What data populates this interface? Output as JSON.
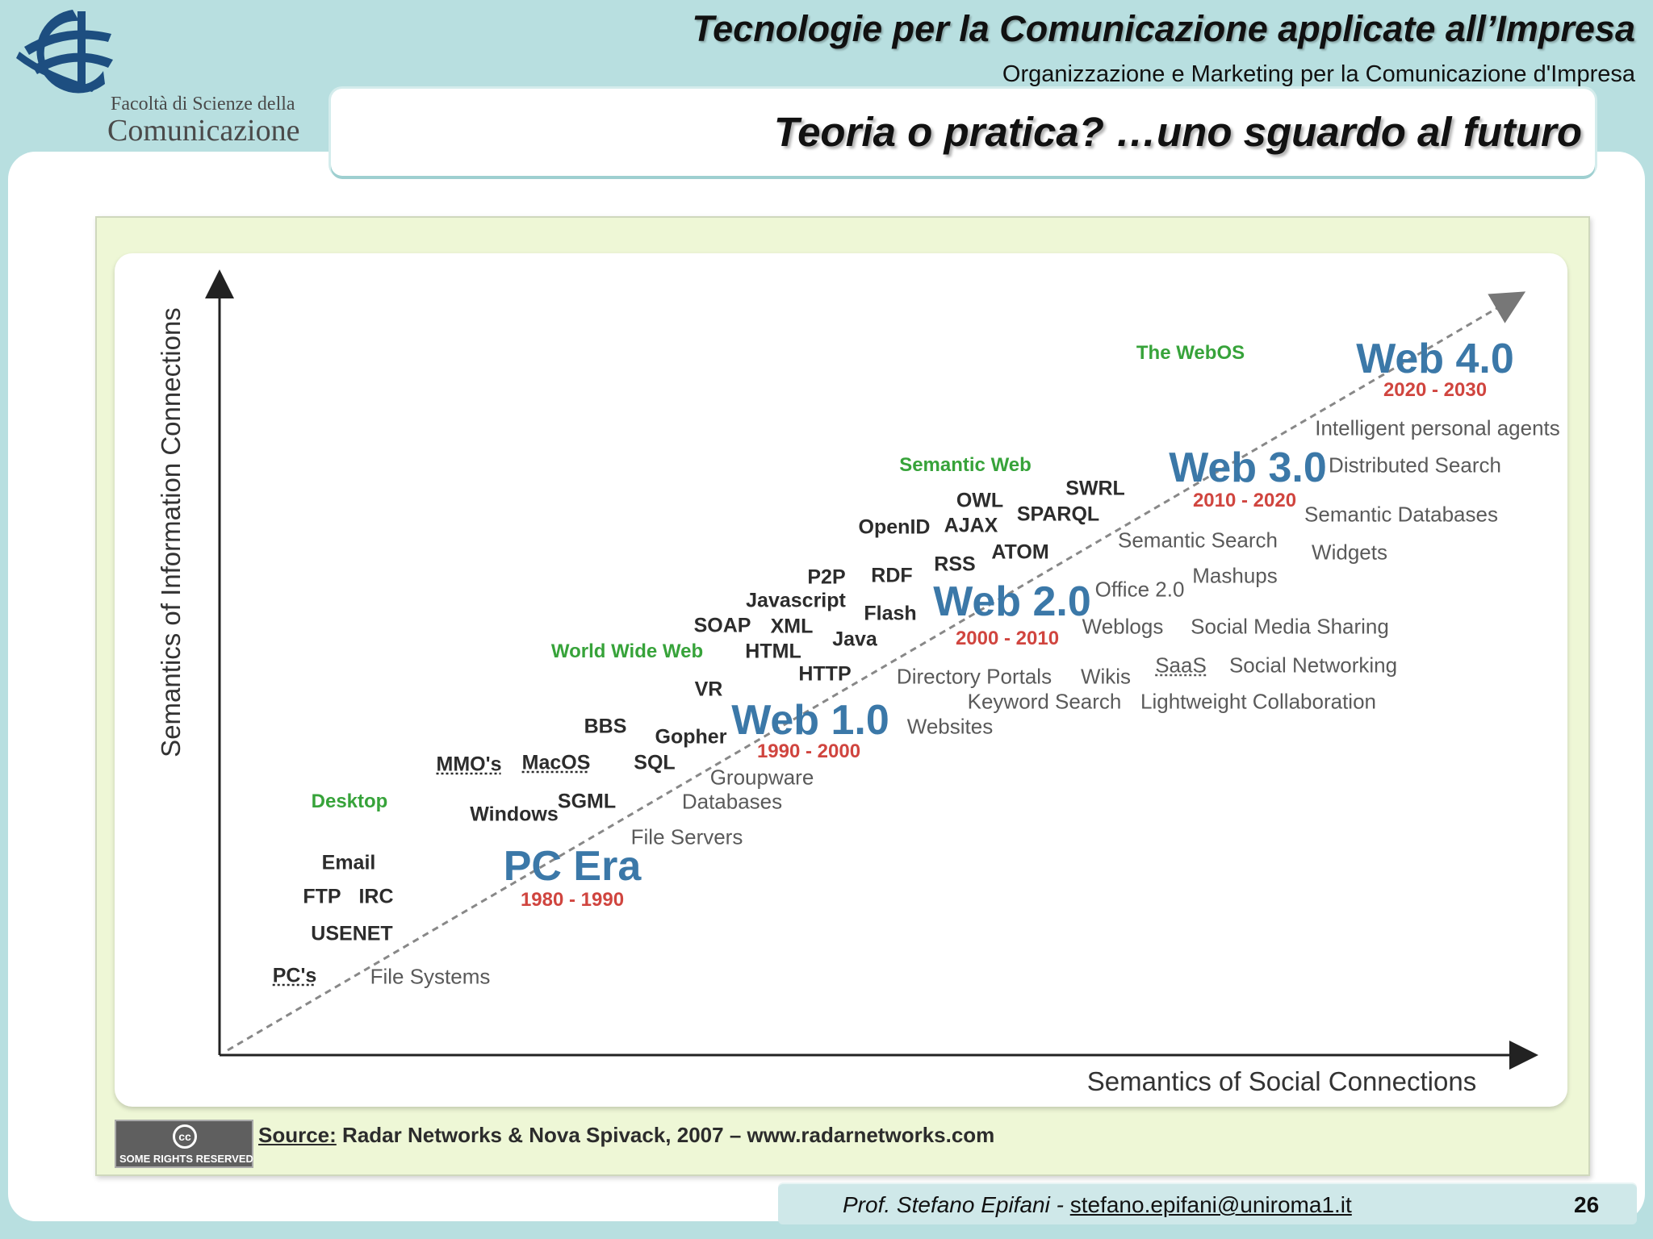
{
  "header": {
    "title": "Tecnologie per la Comunicazione applicate all’Impresa",
    "subtitle": "Organizzazione e Marketing per la Comunicazione d'Impresa"
  },
  "logo": {
    "line1": "Facoltà di Scienze della",
    "line2": "Comunicazione"
  },
  "slide": {
    "title": "Teoria o pratica? …uno sguardo al futuro"
  },
  "diagram": {
    "y_axis_label": "Semantics of Information Connections",
    "x_axis_label": "Semantics of Social Connections",
    "eras": [
      {
        "name": "PC Era",
        "years": "1980 - 1990",
        "category": "Desktop"
      },
      {
        "name": "Web 1.0",
        "years": "1990 - 2000",
        "category": "World Wide Web"
      },
      {
        "name": "Web 2.0",
        "years": "2000 - 2010",
        "category": ""
      },
      {
        "name": "Web 3.0",
        "years": "2010 - 2020",
        "category": "Semantic Web"
      },
      {
        "name": "Web 4.0",
        "years": "2020 - 2030",
        "category": "The WebOS"
      }
    ],
    "tech": {
      "pcs": "PC's",
      "usenet": "USENET",
      "ftp": "FTP",
      "irc": "IRC",
      "email": "Email",
      "windows": "Windows",
      "sgml": "SGML",
      "mmos": "MMO's",
      "macos": "MacOS",
      "bbs": "BBS",
      "sql": "SQL",
      "gopher": "Gopher",
      "vr": "VR",
      "http": "HTTP",
      "html": "HTML",
      "java": "Java",
      "soap": "SOAP",
      "xml": "XML",
      "javascript": "Javascript",
      "flash": "Flash",
      "p2p": "P2P",
      "rdf": "RDF",
      "rss": "RSS",
      "openid": "OpenID",
      "ajax": "AJAX",
      "atom": "ATOM",
      "owl": "OWL",
      "sparql": "SPARQL",
      "swrl": "SWRL"
    },
    "apps": {
      "file_systems": "File Systems",
      "file_servers": "File Servers",
      "databases": "Databases",
      "groupware": "Groupware",
      "websites": "Websites",
      "keyword_search": "Keyword Search",
      "directory_portals": "Directory Portals",
      "wikis": "Wikis",
      "weblogs": "Weblogs",
      "office20": "Office 2.0",
      "lightweight_collab": "Lightweight Collaboration",
      "saas": "SaaS",
      "social_networking": "Social Networking",
      "social_media_sharing": "Social Media Sharing",
      "mashups": "Mashups",
      "semantic_search": "Semantic Search",
      "widgets": "Widgets",
      "semantic_databases": "Semantic Databases",
      "distributed_search": "Distributed Search",
      "intelligent_agents": "Intelligent personal agents"
    },
    "source_key": "Source:",
    "source_text": " Radar Networks & Nova Spivack, 2007 – www.radarnetworks.com",
    "cc_label": "SOME RIGHTS RESERVED",
    "cc_symbol": "cc"
  },
  "footer": {
    "author": "Prof. Stefano Epifani - ",
    "email": "stefano.epifani@uniroma1.it",
    "page": "26"
  },
  "colors": {
    "background": "#b8dfe0",
    "era_blue": "#3b78a8",
    "years_red": "#d0453f",
    "category_green": "#37a33a"
  }
}
